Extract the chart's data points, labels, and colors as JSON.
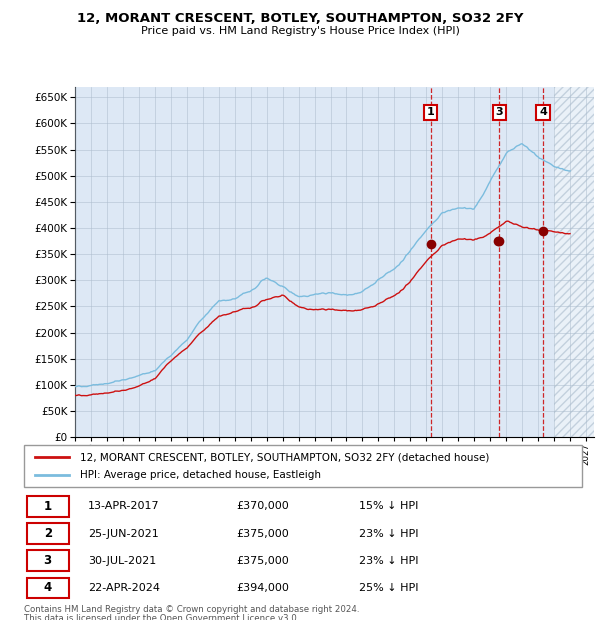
{
  "title": "12, MORANT CRESCENT, BOTLEY, SOUTHAMPTON, SO32 2FY",
  "subtitle": "Price paid vs. HM Land Registry's House Price Index (HPI)",
  "legend_property": "12, MORANT CRESCENT, BOTLEY, SOUTHAMPTON, SO32 2FY (detached house)",
  "legend_hpi": "HPI: Average price, detached house, Eastleigh",
  "footer_line1": "Contains HM Land Registry data © Crown copyright and database right 2024.",
  "footer_line2": "This data is licensed under the Open Government Licence v3.0.",
  "table_rows": [
    [
      "1",
      "13-APR-2017",
      "£370,000",
      "15% ↓ HPI"
    ],
    [
      "2",
      "25-JUN-2021",
      "£375,000",
      "23% ↓ HPI"
    ],
    [
      "3",
      "30-JUL-2021",
      "£375,000",
      "23% ↓ HPI"
    ],
    [
      "4",
      "22-APR-2024",
      "£394,000",
      "25% ↓ HPI"
    ]
  ],
  "hpi_color": "#7bbcde",
  "price_color": "#cc1111",
  "point_color": "#880000",
  "vline_color": "#cc1111",
  "background_color": "#dde8f5",
  "grid_color": "#aabbcc",
  "ylim": [
    0,
    670000
  ],
  "xlim_start": 1995.0,
  "xlim_end": 2027.5,
  "future_shade_start": 2025.0,
  "sale_events": [
    {
      "date": 2017.28,
      "price": 370000,
      "label": "1",
      "show_vline": true,
      "show_box": true
    },
    {
      "date": 2021.48,
      "price": 375000,
      "label": "2",
      "show_vline": false,
      "show_box": false
    },
    {
      "date": 2021.58,
      "price": 375000,
      "label": "3",
      "show_vline": true,
      "show_box": true
    },
    {
      "date": 2024.31,
      "price": 394000,
      "label": "4",
      "show_vline": true,
      "show_box": true
    }
  ],
  "hpi_breakpoints": [
    [
      1995,
      97000
    ],
    [
      1996,
      100000
    ],
    [
      1997,
      103000
    ],
    [
      1998,
      108000
    ],
    [
      1999,
      115000
    ],
    [
      2000,
      125000
    ],
    [
      2001,
      155000
    ],
    [
      2002,
      185000
    ],
    [
      2003,
      230000
    ],
    [
      2004,
      265000
    ],
    [
      2005,
      270000
    ],
    [
      2006,
      285000
    ],
    [
      2007,
      310000
    ],
    [
      2008,
      295000
    ],
    [
      2009,
      275000
    ],
    [
      2010,
      280000
    ],
    [
      2011,
      280000
    ],
    [
      2012,
      275000
    ],
    [
      2013,
      285000
    ],
    [
      2014,
      305000
    ],
    [
      2015,
      330000
    ],
    [
      2016,
      365000
    ],
    [
      2017,
      405000
    ],
    [
      2018,
      435000
    ],
    [
      2019,
      445000
    ],
    [
      2020,
      445000
    ],
    [
      2021,
      495000
    ],
    [
      2022,
      545000
    ],
    [
      2023,
      565000
    ],
    [
      2024,
      540000
    ],
    [
      2025,
      520000
    ],
    [
      2026,
      510000
    ]
  ],
  "price_breakpoints": [
    [
      1995,
      80000
    ],
    [
      1996,
      82000
    ],
    [
      1997,
      85000
    ],
    [
      1998,
      88000
    ],
    [
      1999,
      95000
    ],
    [
      2000,
      110000
    ],
    [
      2001,
      145000
    ],
    [
      2002,
      170000
    ],
    [
      2003,
      205000
    ],
    [
      2004,
      235000
    ],
    [
      2005,
      245000
    ],
    [
      2006,
      252000
    ],
    [
      2007,
      268000
    ],
    [
      2008,
      278000
    ],
    [
      2009,
      255000
    ],
    [
      2010,
      250000
    ],
    [
      2011,
      248000
    ],
    [
      2012,
      245000
    ],
    [
      2013,
      250000
    ],
    [
      2014,
      258000
    ],
    [
      2015,
      278000
    ],
    [
      2016,
      305000
    ],
    [
      2017,
      345000
    ],
    [
      2018,
      372000
    ],
    [
      2019,
      385000
    ],
    [
      2020,
      385000
    ],
    [
      2021,
      395000
    ],
    [
      2022,
      415000
    ],
    [
      2023,
      405000
    ],
    [
      2024,
      400000
    ],
    [
      2025,
      395000
    ],
    [
      2026,
      390000
    ]
  ]
}
